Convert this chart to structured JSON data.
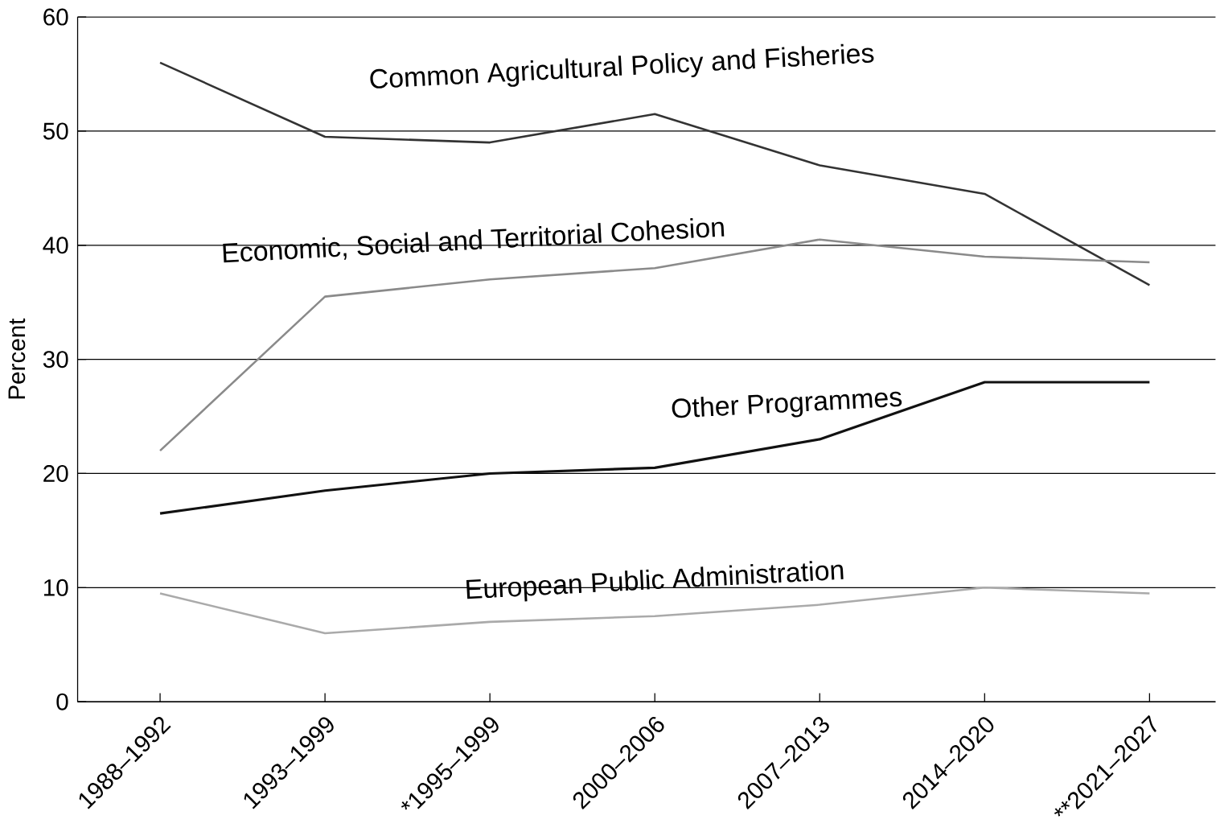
{
  "chart_data": {
    "type": "line",
    "ylabel": "Percent",
    "categories": [
      "1988–1992",
      "1993–1999",
      "*1995–1999",
      "2000–2006",
      "2007–2013",
      "2014–2020",
      "**2021–2027"
    ],
    "series": [
      {
        "name": "Common Agricultural Policy and Fisheries",
        "color": "#333333",
        "values": [
          56,
          49.5,
          49,
          51.5,
          47,
          44.5,
          36.5
        ]
      },
      {
        "name": "Economic, Social and Territorial Cohesion",
        "color": "#8a8a8a",
        "values": [
          22,
          35.5,
          37,
          38,
          40.5,
          39,
          38.5
        ]
      },
      {
        "name": "Other Programmes",
        "color": "#111111",
        "values": [
          16.5,
          18.5,
          20,
          20.5,
          23,
          28,
          28
        ]
      },
      {
        "name": "European Public Administration",
        "color": "#aaaaaa",
        "values": [
          9.5,
          6,
          7,
          7.5,
          8.5,
          10,
          9.5
        ]
      }
    ],
    "ylim": [
      0,
      60
    ],
    "yticks": [
      0,
      10,
      20,
      30,
      40,
      50,
      60
    ],
    "grid": "y",
    "marker": "none",
    "line_style": "solid"
  }
}
